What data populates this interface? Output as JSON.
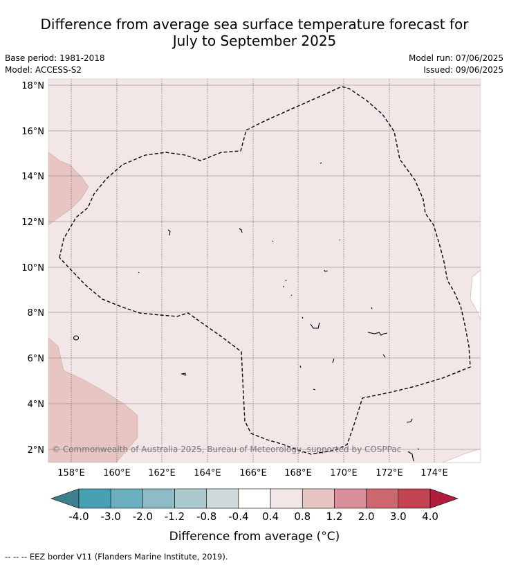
{
  "title": {
    "line1": "Difference from average sea surface temperature forecast for",
    "line2": "July to September 2025"
  },
  "meta": {
    "base_period": "Base period: 1981-2018",
    "model": "Model: ACCESS-S2",
    "model_run": "Model run: 07/06/2025",
    "issued": "Issued: 09/06/2025"
  },
  "map": {
    "lat_labels": [
      "18°N",
      "16°N",
      "14°N",
      "12°N",
      "10°N",
      "8°N",
      "6°N",
      "4°N",
      "2°N"
    ],
    "lon_labels": [
      "158°E",
      "160°E",
      "162°E",
      "164°E",
      "166°E",
      "168°E",
      "170°E",
      "172°E",
      "174°E"
    ],
    "copyright": "© Commonwealth of Australia 2025, Bureau of Meteorology, supported by COSPPac",
    "eez_note": "-- -- -- EEZ border V11 (Flanders Marine Institute, 2019)."
  },
  "colorbar": {
    "tick_labels": [
      "-4.0",
      "-3.0",
      "-2.0",
      "-1.2",
      "-0.8",
      "-0.4",
      "0.4",
      "0.8",
      "1.2",
      "2.0",
      "3.0",
      "4.0"
    ],
    "colors": [
      "#3d7f8c",
      "#47a1b3",
      "#6cafbf",
      "#8ebbc6",
      "#a9c9cd",
      "#cdd9da",
      "#ffffff",
      "#f3e6e6",
      "#e6c5c2",
      "#d8919a",
      "#cd6870",
      "#c24452",
      "#b11e3c"
    ],
    "label": "Difference from average (°C)"
  },
  "legend_colors": {
    "background_anomaly": "#f3e6e6",
    "warmer_anomaly": "#e6c5c2"
  }
}
